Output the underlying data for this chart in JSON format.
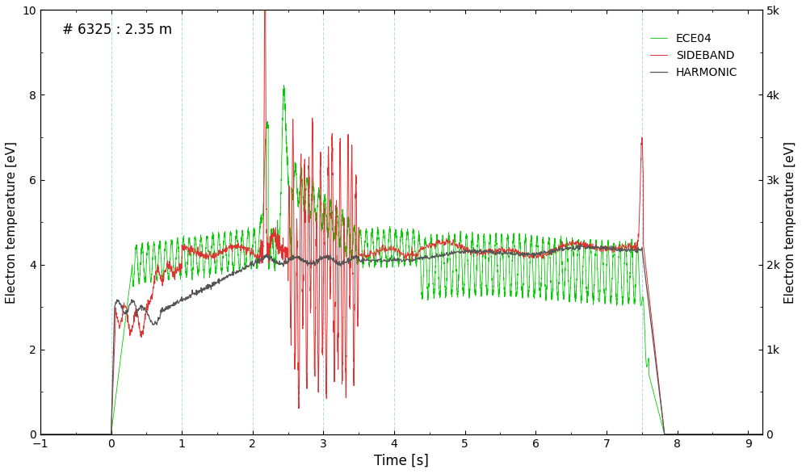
{
  "title_annotation": "# 6325 : 2.35 m",
  "xlabel": "Time [s]",
  "ylabel_left": "Electron temperature [eV]",
  "ylabel_right": "Electron temperature [eV]",
  "xlim": [
    -1,
    9.2
  ],
  "ylim_left": [
    0,
    10
  ],
  "ylim_right": [
    0,
    5000
  ],
  "yticks_left": [
    0,
    2,
    4,
    6,
    8,
    10
  ],
  "yticks_right": [
    0,
    1000,
    2000,
    3000,
    4000,
    5000
  ],
  "ytick_labels_right": [
    "0",
    "1k",
    "2k",
    "3k",
    "4k",
    "5k"
  ],
  "xticks": [
    -1,
    0,
    1,
    2,
    3,
    4,
    5,
    6,
    7,
    8,
    9
  ],
  "vlines": [
    0,
    1,
    2,
    3,
    4,
    7.5
  ],
  "legend_labels": [
    "HARMONIC",
    "SIDEBAND",
    "ECE04"
  ],
  "harmonic_color": "#555555",
  "sideband_color": "#e03030",
  "ece04_color": "#00cc00",
  "background_color": "#ffffff",
  "figsize": [
    9.93,
    5.87
  ],
  "dpi": 100
}
